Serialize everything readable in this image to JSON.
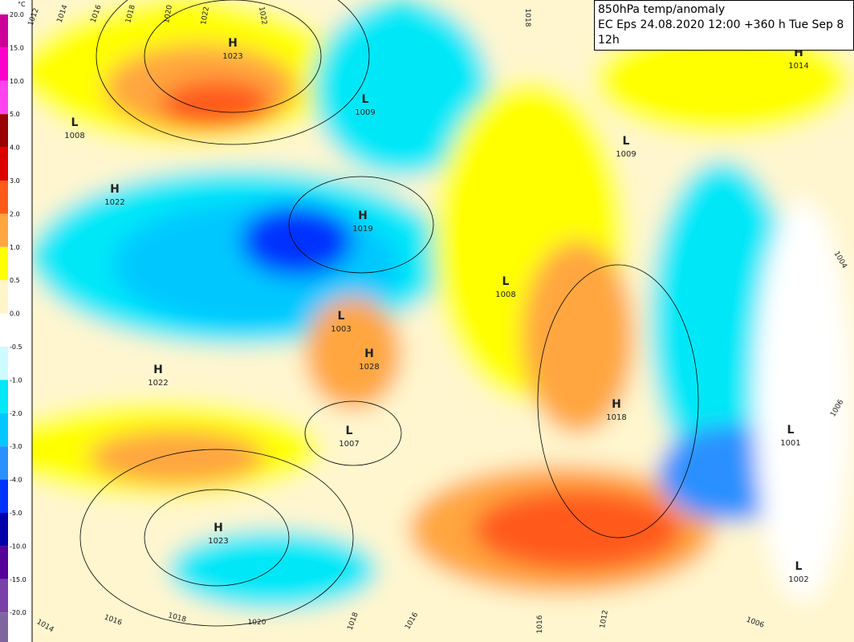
{
  "header": {
    "lines": [
      "850hPa temp/anomaly",
      "EC Eps 24.08.2020 12:00 +360 h Tue Sep 8 12h"
    ]
  },
  "legend": {
    "unit": "°C",
    "labels": [
      "20.0",
      "15.0",
      "10.0",
      "5.0",
      "4.0",
      "3.0",
      "2.0",
      "1.0",
      "0.5",
      "0.0",
      "-0.5",
      "-1.0",
      "-2.0",
      "-3.0",
      "-4.0",
      "-5.0",
      "-10.0",
      "-15.0",
      "-20.0"
    ],
    "colors": [
      "#cc0099",
      "#ff00cc",
      "#ff44ee",
      "#9a0000",
      "#dd0000",
      "#ff5a1a",
      "#ffa640",
      "#ffff00",
      "#fff5c8",
      "#ffffff",
      "#ccfcff",
      "#00e8f8",
      "#00c8ff",
      "#2a90ff",
      "#0033ff",
      "#0000aa",
      "#550099",
      "#7a3fa8",
      "#8066a0"
    ]
  },
  "centers": [
    {
      "letter": "H",
      "value": "1023"
    },
    {
      "letter": "L",
      "value": "1008"
    },
    {
      "letter": "H",
      "value": "1022"
    },
    {
      "letter": "L",
      "value": "1009"
    },
    {
      "letter": "H",
      "value": "1019"
    },
    {
      "letter": "L",
      "value": "1003"
    },
    {
      "letter": "H",
      "value": "1028"
    },
    {
      "letter": "L",
      "value": "1008"
    },
    {
      "letter": "H",
      "value": "1022"
    },
    {
      "letter": "L",
      "value": "1007"
    },
    {
      "letter": "L",
      "value": "1009"
    },
    {
      "letter": "H",
      "value": "1018"
    },
    {
      "letter": "H",
      "value": "1014"
    },
    {
      "letter": "H",
      "value": "1023"
    },
    {
      "letter": "L",
      "value": "1001"
    },
    {
      "letter": "L",
      "value": "1002"
    }
  ],
  "isobar_labels": [
    "1012",
    "1014",
    "1016",
    "1018",
    "1020",
    "1022",
    "1022",
    "1018",
    "1014",
    "1016",
    "1018",
    "1020",
    "1018",
    "1016",
    "1016",
    "1012",
    "1006",
    "1004",
    "1006"
  ]
}
